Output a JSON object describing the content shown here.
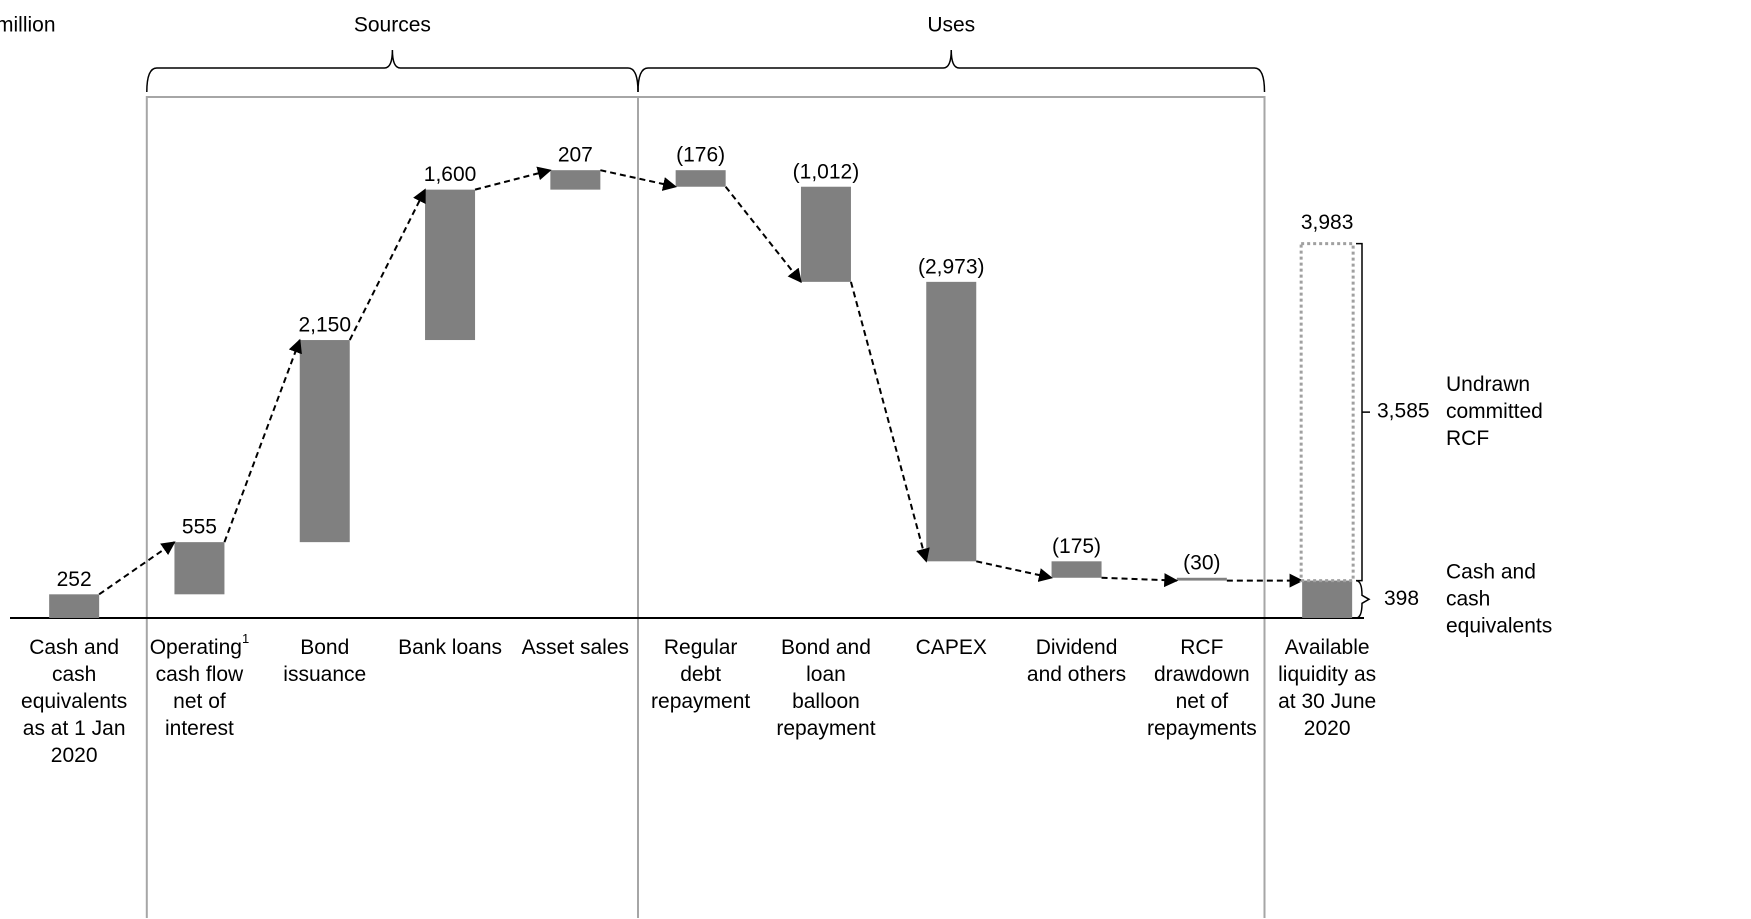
{
  "chart_data": {
    "type": "waterfall",
    "unit_label": "million",
    "categories": [
      [
        "Cash and",
        "cash",
        "equivalents",
        "as at 1 Jan",
        "2020"
      ],
      [
        "Operating",
        "cash flow",
        "net of",
        "interest"
      ],
      [
        "Bond",
        "issuance"
      ],
      [
        "Bank loans"
      ],
      [
        "Asset sales"
      ],
      [
        "Regular",
        "debt",
        "repayment"
      ],
      [
        "Bond and",
        "loan",
        "balloon",
        "repayment"
      ],
      [
        "CAPEX"
      ],
      [
        "Dividend",
        "and others"
      ],
      [
        "RCF",
        "drawdown",
        "net of",
        "repayments"
      ],
      [
        "Available",
        "liquidity as",
        "at 30 June",
        "2020"
      ]
    ],
    "category_notes": [
      null,
      "1",
      null,
      null,
      null,
      null,
      null,
      null,
      null,
      null,
      null
    ],
    "measures": [
      "absolute",
      "relative",
      "relative",
      "relative",
      "relative",
      "relative",
      "relative",
      "relative",
      "relative",
      "relative",
      "total"
    ],
    "values": [
      252,
      555,
      2150,
      1600,
      207,
      -176,
      -1012,
      -2973,
      -175,
      -30,
      398
    ],
    "value_labels": [
      "252",
      "555",
      "2,150",
      "1,600",
      "207",
      "(176)",
      "(1,012)",
      "(2,973)",
      "(175)",
      "(30)",
      null
    ],
    "color": "#808080",
    "ylim": [
      0,
      5000
    ],
    "groups": [
      {
        "name": "Sources",
        "start": 1,
        "end": 4
      },
      {
        "name": "Uses",
        "start": 5,
        "end": 9
      }
    ],
    "liquidity": {
      "total": 3983,
      "total_label": "3,983",
      "undrawn": 3585,
      "undrawn_label": "3,585",
      "undrawn_name": [
        "Undrawn",
        "committed",
        "RCF"
      ],
      "cash_name": [
        "Cash and",
        "cash",
        "equivalents"
      ],
      "box_color": "#a0a0a0"
    }
  }
}
